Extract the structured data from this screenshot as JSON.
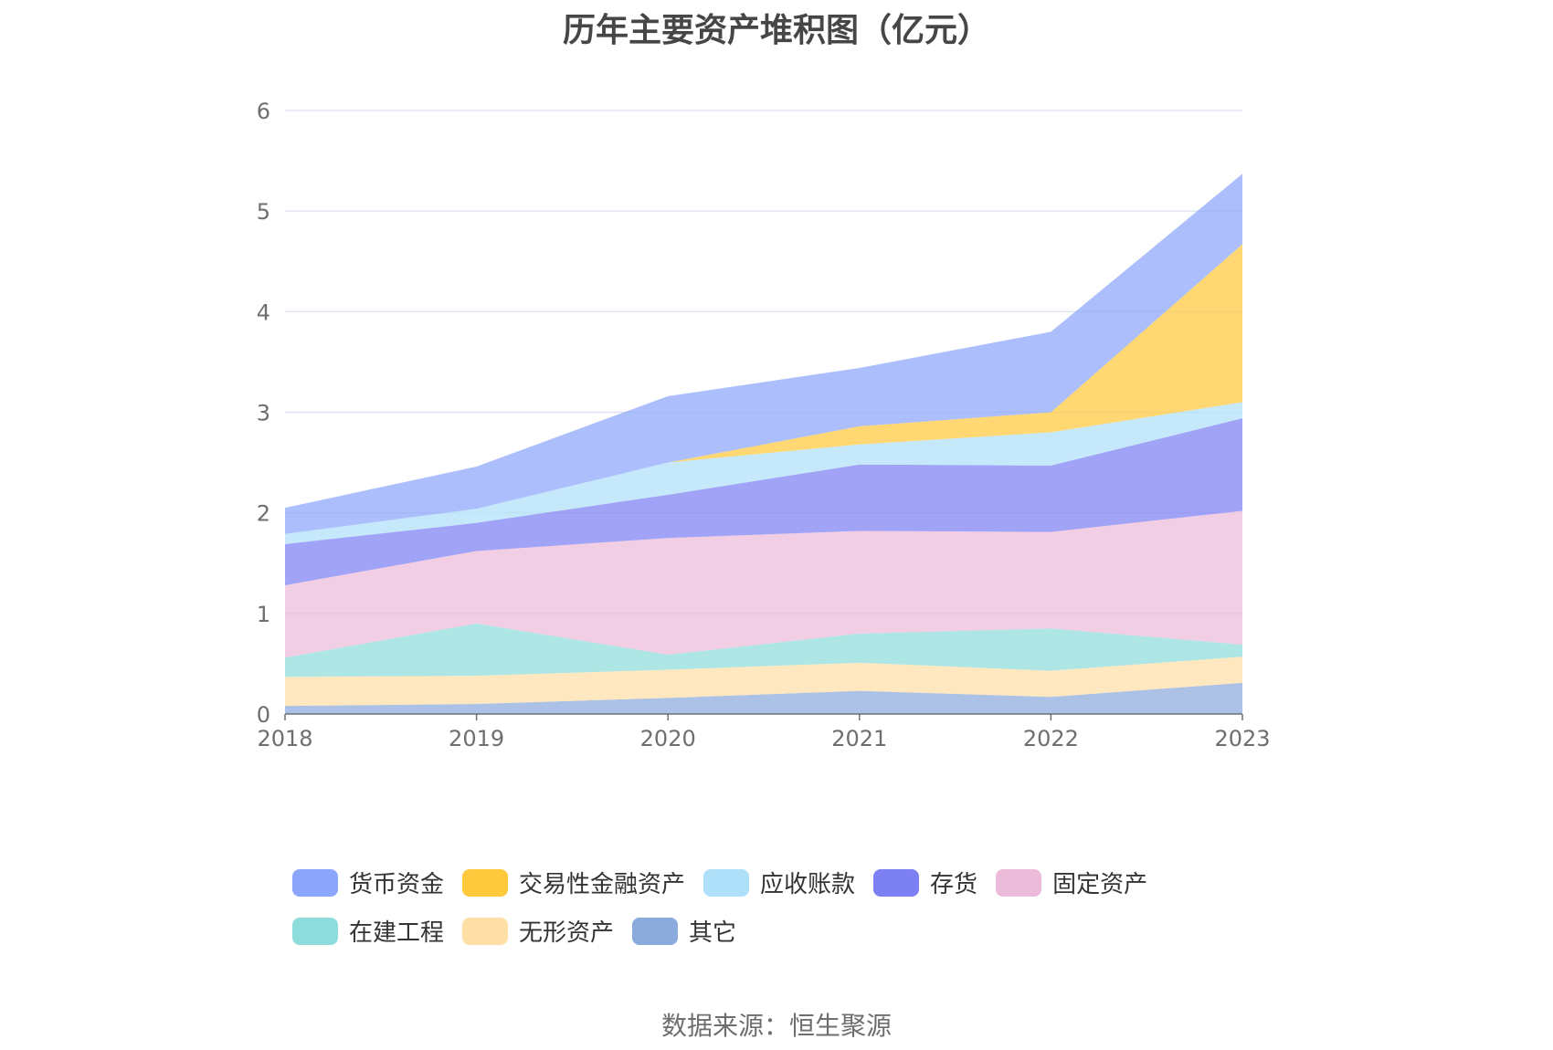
{
  "chart_data": {
    "type": "area",
    "stacked": true,
    "title": "历年主要资产堆积图（亿元）",
    "source": "数据来源：恒生聚源",
    "x": [
      "2018",
      "2019",
      "2020",
      "2021",
      "2022",
      "2023"
    ],
    "ylim": [
      0,
      6
    ],
    "yticks": [
      "0",
      "1",
      "2",
      "3",
      "4",
      "5",
      "6"
    ],
    "grid": true,
    "legend_position": "bottom",
    "series": [
      {
        "name": "其它",
        "color": "#8aabdc",
        "values": [
          0.08,
          0.1,
          0.16,
          0.23,
          0.17,
          0.31
        ]
      },
      {
        "name": "无形资产",
        "color": "#ffdfa6",
        "values": [
          0.29,
          0.28,
          0.28,
          0.28,
          0.26,
          0.26
        ]
      },
      {
        "name": "在建工程",
        "color": "#8fdcdc",
        "values": [
          0.19,
          0.52,
          0.15,
          0.29,
          0.42,
          0.12
        ]
      },
      {
        "name": "固定资产",
        "color": "#ebbbd9",
        "values": [
          0.72,
          0.72,
          1.16,
          1.02,
          0.96,
          1.33
        ]
      },
      {
        "name": "存货",
        "color": "#7d80f2",
        "values": [
          0.41,
          0.28,
          0.43,
          0.66,
          0.66,
          0.92
        ]
      },
      {
        "name": "应收账款",
        "color": "#aee0f9",
        "values": [
          0.1,
          0.14,
          0.32,
          0.2,
          0.33,
          0.16
        ]
      },
      {
        "name": "交易性金融资产",
        "color": "#ffc93d",
        "values": [
          0.0,
          0.0,
          0.0,
          0.18,
          0.2,
          1.57
        ]
      },
      {
        "name": "货币资金",
        "color": "#8ca6fb",
        "values": [
          0.26,
          0.42,
          0.66,
          0.58,
          0.8,
          0.7
        ]
      }
    ]
  },
  "legend": [
    {
      "name": "货币资金",
      "color": "#8ca6fb"
    },
    {
      "name": "交易性金融资产",
      "color": "#ffc93d"
    },
    {
      "name": "应收账款",
      "color": "#aee0f9"
    },
    {
      "name": "存货",
      "color": "#7d80f2"
    },
    {
      "name": "固定资产",
      "color": "#ebbbd9"
    },
    {
      "name": "在建工程",
      "color": "#8fdcdc"
    },
    {
      "name": "无形资产",
      "color": "#ffdfa6"
    },
    {
      "name": "其它",
      "color": "#8aabdc"
    }
  ],
  "colors": {
    "grid": "#e0e6f1",
    "axis": "#6e7079",
    "tick_text": "#6e6e6e"
  }
}
